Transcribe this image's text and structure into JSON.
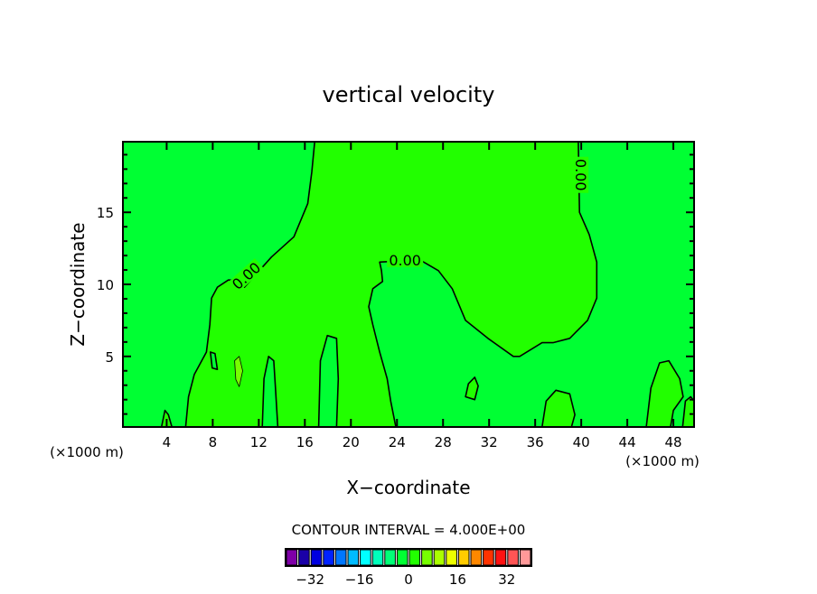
{
  "chart_data": {
    "type": "contour",
    "title": "vertical velocity",
    "xlabel": "X−coordinate",
    "ylabel": "Z−coordinate",
    "x_unit_label": "(×1000 m)",
    "y_unit_label": "(×1000 m)",
    "xlim": [
      0.2,
      49.8
    ],
    "ylim": [
      0.1,
      19.9
    ],
    "xticks": [
      4,
      8,
      12,
      16,
      20,
      24,
      28,
      32,
      36,
      40,
      44,
      48
    ],
    "yticks": [
      5,
      10,
      15
    ],
    "contour_interval_text": "CONTOUR INTERVAL = 4.000E+00",
    "background_color": "#00ff33",
    "regions": [
      {
        "level": "0 to 4",
        "color": "#22ff00",
        "points": [
          [
            5.65,
            0.1
          ],
          [
            5.9,
            2.2
          ],
          [
            6.4,
            3.75
          ],
          [
            7.45,
            5.3
          ],
          [
            7.75,
            7.2
          ],
          [
            7.9,
            9.05
          ],
          [
            8.4,
            9.8
          ],
          [
            9.35,
            10.3
          ],
          [
            10.1,
            10.3
          ],
          [
            10.75,
            9.8
          ],
          [
            13.1,
            11.9
          ],
          [
            15.05,
            13.3
          ],
          [
            16.25,
            15.6
          ],
          [
            16.6,
            17.8
          ],
          [
            16.85,
            19.9
          ],
          [
            39.75,
            19.9
          ],
          [
            39.85,
            15
          ],
          [
            40.7,
            13.45
          ],
          [
            41.35,
            11.55
          ],
          [
            41.35,
            9.05
          ],
          [
            40.55,
            7.5
          ],
          [
            39,
            6.25
          ],
          [
            37.55,
            5.95
          ],
          [
            36.6,
            5.95
          ],
          [
            34.65,
            5
          ],
          [
            34.1,
            5
          ],
          [
            31.9,
            6.25
          ],
          [
            29.95,
            7.5
          ],
          [
            28.8,
            9.7
          ],
          [
            27.6,
            10.95
          ],
          [
            26,
            11.7
          ],
          [
            22.5,
            11.55
          ],
          [
            22.65,
            10.95
          ],
          [
            22.75,
            10.2
          ],
          [
            21.9,
            9.7
          ],
          [
            21.55,
            8.45
          ],
          [
            21.9,
            7.2
          ],
          [
            22.5,
            5.3
          ],
          [
            23.15,
            3.45
          ],
          [
            23.45,
            1.9
          ],
          [
            23.9,
            0.1
          ]
        ]
      },
      {
        "level": "-4 to 0",
        "color": "#00ff33",
        "points": [
          [
            12.3,
            0.1
          ],
          [
            12.45,
            3.45
          ],
          [
            12.85,
            5
          ],
          [
            13.3,
            4.7
          ],
          [
            13.45,
            2.8
          ],
          [
            13.65,
            0.1
          ]
        ]
      },
      {
        "level": "-4 to 0",
        "color": "#00ff33",
        "points": [
          [
            17.2,
            0.1
          ],
          [
            17.35,
            4.7
          ],
          [
            17.95,
            6.45
          ],
          [
            18.75,
            6.25
          ],
          [
            18.9,
            3.45
          ],
          [
            18.75,
            0.1
          ]
        ]
      },
      {
        "level": "-4 to 0",
        "color": "#00ff33",
        "points": [
          [
            7.8,
            5.3
          ],
          [
            7.95,
            4.2
          ],
          [
            8.4,
            4.1
          ],
          [
            8.2,
            5.2
          ]
        ]
      },
      {
        "level": "4 to 8",
        "color": "#77ff00",
        "points": [
          [
            9.9,
            4.7
          ],
          [
            10.3,
            5
          ],
          [
            10.6,
            4
          ],
          [
            10.3,
            2.9
          ],
          [
            10,
            3.4
          ]
        ]
      },
      {
        "level": "0 to 4",
        "color": "#22ff00",
        "points": [
          [
            45.65,
            0.1
          ],
          [
            46.05,
            2.8
          ],
          [
            46.8,
            4.55
          ],
          [
            47.6,
            4.7
          ],
          [
            48.55,
            3.45
          ],
          [
            48.85,
            2.2
          ],
          [
            48,
            1.25
          ],
          [
            47.75,
            0.1
          ]
        ]
      },
      {
        "level": "0 to 4",
        "color": "#22ff00",
        "points": [
          [
            36.6,
            0.1
          ],
          [
            36.95,
            1.9
          ],
          [
            37.8,
            2.65
          ],
          [
            39,
            2.4
          ],
          [
            39.45,
            0.95
          ],
          [
            39.15,
            0.1
          ]
        ]
      },
      {
        "level": "0 to 4",
        "color": "#22ff00",
        "points": [
          [
            29.95,
            2.2
          ],
          [
            30.2,
            3.1
          ],
          [
            30.75,
            3.55
          ],
          [
            31.05,
            2.95
          ],
          [
            30.75,
            2
          ]
        ]
      },
      {
        "level": "0 to 4",
        "color": "#22ff00",
        "points": [
          [
            48.8,
            0.1
          ],
          [
            49.05,
            1.9
          ],
          [
            49.5,
            2.2
          ],
          [
            49.8,
            1.9
          ],
          [
            49.8,
            0.1
          ]
        ]
      },
      {
        "level": "0 to 4",
        "color": "#22ff00",
        "points": [
          [
            3.55,
            0.1
          ],
          [
            3.85,
            1.25
          ],
          [
            4.15,
            0.95
          ],
          [
            4.45,
            0.1
          ]
        ]
      }
    ],
    "contour_labels": [
      {
        "text": "0.00",
        "x": 10.9,
        "y": 10.6
      },
      {
        "text": "0.00",
        "x": 24.7,
        "y": 11.7
      },
      {
        "text": "0.00",
        "x": 40.0,
        "y": 17.6
      }
    ],
    "colorbar": {
      "min": -40,
      "max": 40,
      "step": 4,
      "colors": [
        "#7f00a8",
        "#1a00a8",
        "#0000e0",
        "#0022ff",
        "#0077ff",
        "#00bbff",
        "#00ffff",
        "#00ffbb",
        "#00ff77",
        "#00ff33",
        "#22ff00",
        "#77ff00",
        "#aaff00",
        "#eeff00",
        "#ffcc00",
        "#ff8800",
        "#ff3300",
        "#ff1111",
        "#ff5555",
        "#ff9999"
      ],
      "tick_values": [
        -32,
        -16,
        0,
        16,
        32
      ],
      "tick_labels": [
        "−32",
        "−16",
        "0",
        "16",
        "32"
      ]
    }
  }
}
